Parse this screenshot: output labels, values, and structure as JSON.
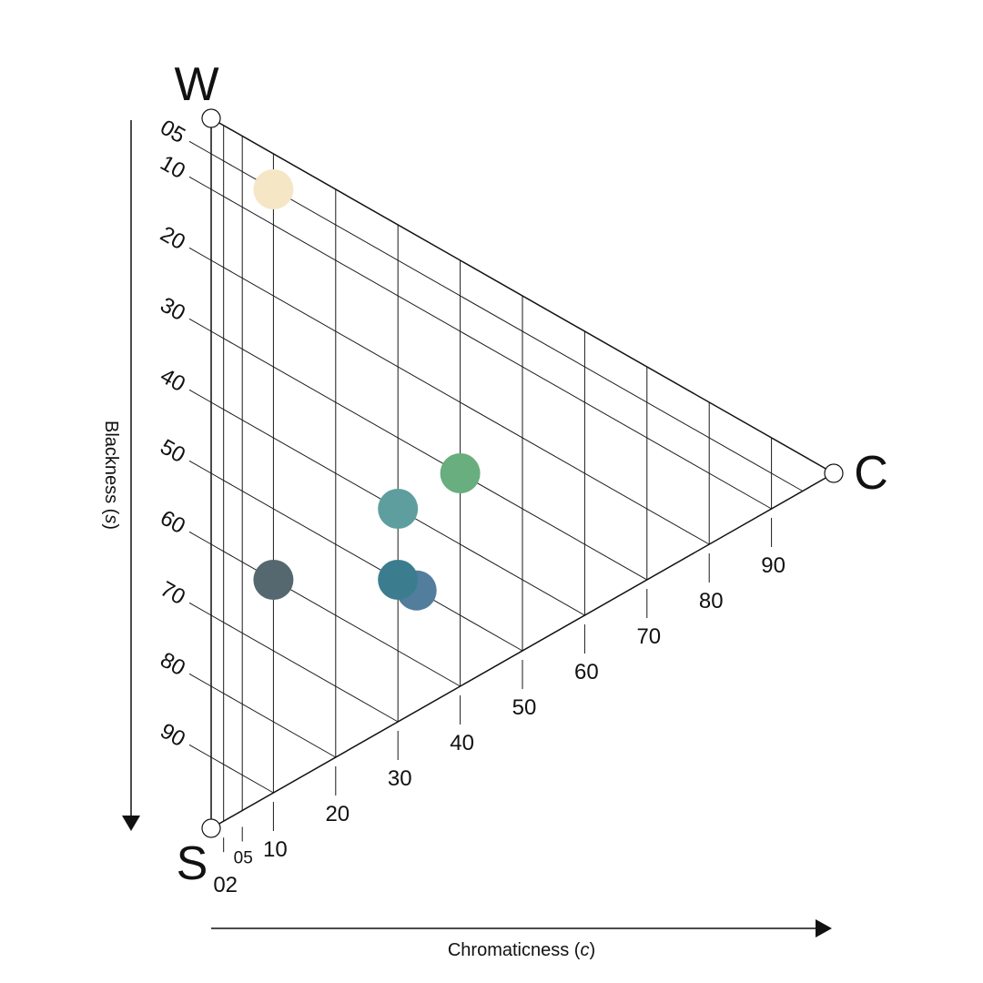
{
  "chart_data": {
    "type": "scatter",
    "subtype": "NCS color triangle",
    "vertices": {
      "white": "W",
      "black": "S",
      "chromatic": "C"
    },
    "blackness_axis": {
      "label": "Blackness",
      "symbol": "s",
      "ticks": [
        "05",
        "10",
        "20",
        "30",
        "40",
        "50",
        "60",
        "70",
        "80",
        "90"
      ],
      "tick_values": [
        5,
        10,
        20,
        30,
        40,
        50,
        60,
        70,
        80,
        90
      ]
    },
    "chromaticness_axis": {
      "label": "Chromaticness",
      "symbol": "c",
      "ticks": [
        "02",
        "05",
        "10",
        "20",
        "30",
        "40",
        "50",
        "60",
        "70",
        "80",
        "90"
      ],
      "tick_values": [
        2,
        5,
        10,
        20,
        30,
        40,
        50,
        60,
        70,
        80,
        90
      ]
    },
    "points": [
      {
        "blackness": 5,
        "chromaticness": 10,
        "color": "#F5E6C6"
      },
      {
        "blackness": 30,
        "chromaticness": 40,
        "color": "#68AE7E"
      },
      {
        "blackness": 40,
        "chromaticness": 30,
        "color": "#5F9E9E"
      },
      {
        "blackness": 50,
        "chromaticness": 33,
        "color": "#537D9D"
      },
      {
        "blackness": 50,
        "chromaticness": 30,
        "color": "#3B7D8E"
      },
      {
        "blackness": 60,
        "chromaticness": 10,
        "color": "#556870"
      }
    ],
    "colors": {
      "line": "#111111",
      "background": "#ffffff"
    }
  }
}
